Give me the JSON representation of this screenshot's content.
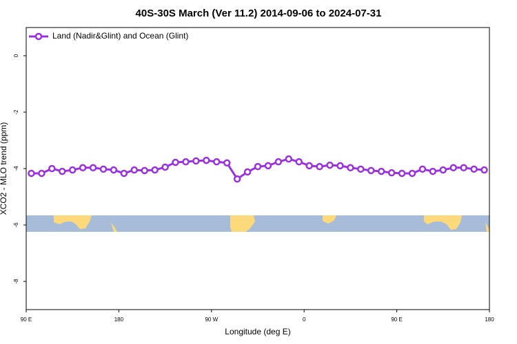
{
  "chart_data": {
    "type": "line",
    "title": "40S-30S March (Ver 11.2)   2014-09-06 to 2024-07-31",
    "x_label": "Longitude (deg E)",
    "y_label": "XCO2 - MLO trend (ppm)",
    "xlim": [
      90,
      540
    ],
    "ylim": [
      -9,
      1
    ],
    "xticks": [
      {
        "value": 90,
        "label": "90 E"
      },
      180,
      {
        "value": 270,
        "label": "90 W"
      },
      {
        "value": 360,
        "label": "0"
      },
      {
        "value": 450,
        "label": "90 E"
      },
      {
        "value": 540,
        "label": "180"
      }
    ],
    "yticks": [
      0,
      -2,
      -4,
      -6,
      -8
    ],
    "grid": false,
    "legend": "upper left",
    "x": [
      95,
      105,
      115,
      125,
      135,
      145,
      155,
      165,
      175,
      185,
      195,
      205,
      215,
      225,
      235,
      245,
      255,
      265,
      275,
      285,
      295,
      305,
      315,
      325,
      335,
      345,
      355,
      365,
      375,
      385,
      395,
      405,
      415,
      425,
      435,
      445,
      455,
      465,
      475,
      485,
      495,
      505,
      515,
      525,
      535
    ],
    "series": [
      {
        "name": "Land (Nadir&Glint) and Ocean (Glint)",
        "color": "#9b30e0",
        "values": [
          -4.17,
          -4.17,
          -4.0,
          -4.1,
          -4.05,
          -3.97,
          -3.97,
          -4.02,
          -4.05,
          -4.17,
          -4.05,
          -4.07,
          -4.05,
          -3.95,
          -3.78,
          -3.76,
          -3.73,
          -3.71,
          -3.76,
          -3.8,
          -4.37,
          -4.12,
          -3.93,
          -3.9,
          -3.76,
          -3.66,
          -3.76,
          -3.9,
          -3.93,
          -3.88,
          -3.9,
          -3.97,
          -4.02,
          -4.07,
          -4.1,
          -4.15,
          -4.17,
          -4.17,
          -4.02,
          -4.1,
          -4.05,
          -3.97,
          -3.97,
          -4.02,
          -4.05
        ]
      }
    ]
  }
}
